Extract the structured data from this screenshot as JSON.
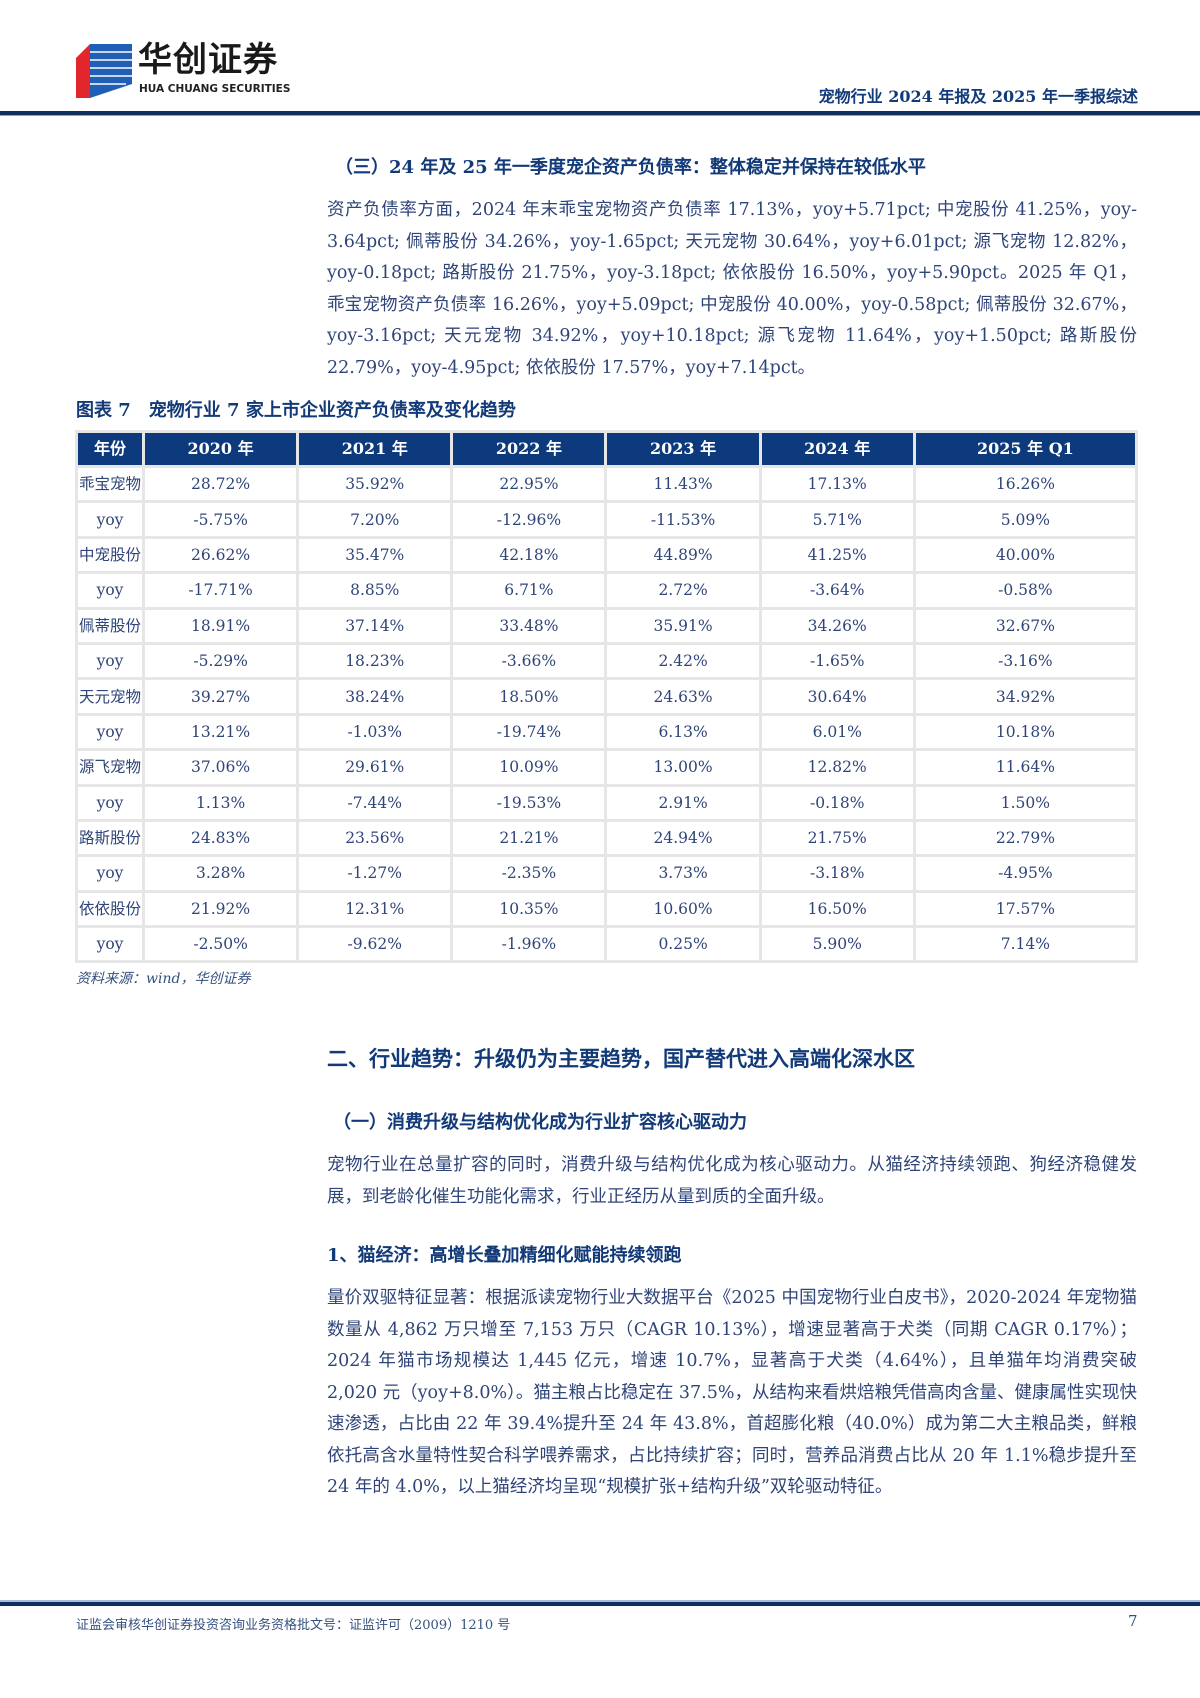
{
  "header": {
    "logo_cn": "华创证券",
    "logo_en": "HUA CHUANG SECURITIES",
    "report_title": "宠物行业 2024 年报及 2025 年一季报综述",
    "colors": {
      "navy": "#0c3a7c",
      "logo_red": "#e3262b",
      "logo_blue": "#1f5fb5"
    }
  },
  "section3": {
    "title": "（三）24 年及 25 年一季度宠企资产负债率：整体稳定并保持在较低水平",
    "paragraph": "资产负债率方面，2024 年末乖宝宠物资产负债率 17.13%，yoy+5.71pct; 中宠股份 41.25%，yoy-3.64pct; 佩蒂股份 34.26%，yoy-1.65pct; 天元宠物 30.64%，yoy+6.01pct; 源飞宠物 12.82%，yoy-0.18pct; 路斯股份 21.75%，yoy-3.18pct; 依依股份 16.50%，yoy+5.90pct。2025 年 Q1，乖宝宠物资产负债率 16.26%，yoy+5.09pct; 中宠股份 40.00%，yoy-0.58pct; 佩蒂股份 32.67%，yoy-3.16pct; 天元宠物 34.92%，yoy+10.18pct; 源飞宠物 11.64%，yoy+1.50pct; 路斯股份 22.79%，yoy-4.95pct; 依依股份 17.57%，yoy+7.14pct。"
  },
  "figure": {
    "caption": "图表 7　宠物行业 7 家上市企业资产负债率及变化趋势",
    "headers": [
      "年份",
      "2020 年",
      "2021 年",
      "2022 年",
      "2023 年",
      "2024 年",
      "2025 年 Q1"
    ],
    "rows": [
      [
        "乖宝宠物",
        "28.72%",
        "35.92%",
        "22.95%",
        "11.43%",
        "17.13%",
        "16.26%"
      ],
      [
        "yoy",
        "-5.75%",
        "7.20%",
        "-12.96%",
        "-11.53%",
        "5.71%",
        "5.09%"
      ],
      [
        "中宠股份",
        "26.62%",
        "35.47%",
        "42.18%",
        "44.89%",
        "41.25%",
        "40.00%"
      ],
      [
        "yoy",
        "-17.71%",
        "8.85%",
        "6.71%",
        "2.72%",
        "-3.64%",
        "-0.58%"
      ],
      [
        "佩蒂股份",
        "18.91%",
        "37.14%",
        "33.48%",
        "35.91%",
        "34.26%",
        "32.67%"
      ],
      [
        "yoy",
        "-5.29%",
        "18.23%",
        "-3.66%",
        "2.42%",
        "-1.65%",
        "-3.16%"
      ],
      [
        "天元宠物",
        "39.27%",
        "38.24%",
        "18.50%",
        "24.63%",
        "30.64%",
        "34.92%"
      ],
      [
        "yoy",
        "13.21%",
        "-1.03%",
        "-19.74%",
        "6.13%",
        "6.01%",
        "10.18%"
      ],
      [
        "源飞宠物",
        "37.06%",
        "29.61%",
        "10.09%",
        "13.00%",
        "12.82%",
        "11.64%"
      ],
      [
        "yoy",
        "1.13%",
        "-7.44%",
        "-19.53%",
        "2.91%",
        "-0.18%",
        "1.50%"
      ],
      [
        "路斯股份",
        "24.83%",
        "23.56%",
        "21.21%",
        "24.94%",
        "21.75%",
        "22.79%"
      ],
      [
        "yoy",
        "3.28%",
        "-1.27%",
        "-2.35%",
        "3.73%",
        "-3.18%",
        "-4.95%"
      ],
      [
        "依依股份",
        "21.92%",
        "12.31%",
        "10.35%",
        "10.60%",
        "16.50%",
        "17.57%"
      ],
      [
        "yoy",
        "-2.50%",
        "-9.62%",
        "-1.96%",
        "0.25%",
        "5.90%",
        "7.14%"
      ]
    ],
    "source": "资料来源：wind，华创证券"
  },
  "chapter2": {
    "title": "二、行业趋势：升级仍为主要趋势，国产替代进入高端化深水区",
    "sub1_title": "（一）消费升级与结构优化成为行业扩容核心驱动力",
    "sub1_paragraph": "宠物行业在总量扩容的同时，消费升级与结构优化成为核心驱动力。从猫经济持续领跑、狗经济稳健发展，到老龄化催生功能化需求，行业正经历从量到质的全面升级。",
    "cat_title": "1、猫经济：高增长叠加精细化赋能持续领跑",
    "cat_paragraph": "量价双驱特征显著：根据派读宠物行业大数据平台《2025 中国宠物行业白皮书》，2020-2024 年宠物猫数量从 4,862 万只增至 7,153 万只（CAGR 10.13%），增速显著高于犬类（同期 CAGR 0.17%）；2024 年猫市场规模达 1,445 亿元，增速 10.7%，显著高于犬类（4.64%），且单猫年均消费突破 2,020 元（yoy+8.0%）。猫主粮占比稳定在 37.5%，从结构来看烘焙粮凭借高肉含量、健康属性实现快速渗透，占比由 22 年 39.4%提升至 24 年 43.8%，首超膨化粮（40.0%）成为第二大主粮品类，鲜粮依托高含水量特性契合科学喂养需求，占比持续扩容；同时，营养品消费占比从 20 年 1.1%稳步提升至 24 年的 4.0%，以上猫经济均呈现“规模扩张+结构升级”双轮驱动特征。"
  },
  "footer": {
    "license": "证监会审核华创证券投资咨询业务资格批文号：证监许可（2009）1210 号",
    "page_number": "7"
  }
}
